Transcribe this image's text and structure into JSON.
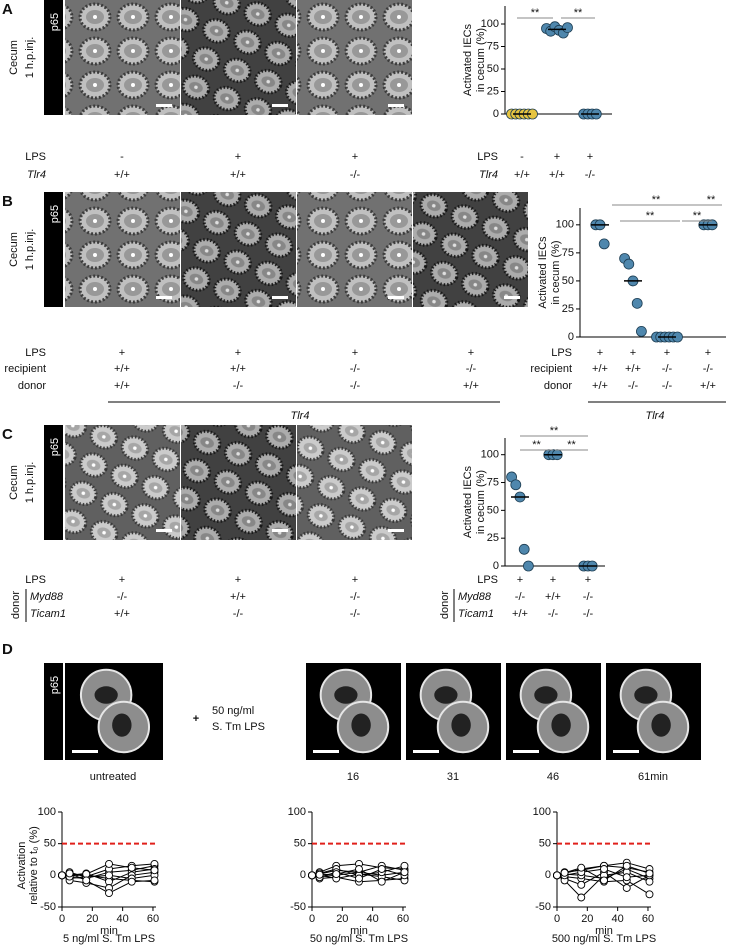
{
  "panels": [
    {
      "label": "A",
      "tissue": [
        "Cecum",
        "1 h.p.inj."
      ],
      "stain": "p65",
      "conditions": [
        {
          "name": "LPS",
          "values": [
            "-",
            "+",
            "+"
          ]
        },
        {
          "name": "Tlr4",
          "values": [
            "+/+",
            "+/+",
            "-/-"
          ]
        }
      ]
    },
    {
      "label": "B",
      "tissue": [
        "Cecum",
        "1 h.p.inj."
      ],
      "stain": "p65",
      "conditions": [
        {
          "name": "LPS",
          "values": [
            "+",
            "+",
            "+",
            "+"
          ]
        },
        {
          "name": "recipient",
          "values": [
            "+/+",
            "+/+",
            "-/-",
            "-/-"
          ]
        },
        {
          "name": "donor",
          "values": [
            "+/+",
            "-/-",
            "-/-",
            "+/+"
          ]
        }
      ],
      "gene": "Tlr4"
    },
    {
      "label": "C",
      "tissue": [
        "Cecum",
        "1 h.p.inj."
      ],
      "stain": "p65",
      "conditions": [
        {
          "name": "LPS",
          "values": [
            "+",
            "+",
            "+"
          ]
        },
        {
          "name": "Myd88",
          "values": [
            "-/-",
            "+/+",
            "-/-"
          ]
        },
        {
          "name": "Ticam1",
          "values": [
            "+/+",
            "-/-",
            "-/-"
          ]
        }
      ],
      "group": "donor"
    },
    {
      "label": "D",
      "stain": "p65",
      "untreated": "untreated",
      "plus": "+",
      "treatment": [
        "50 ng/ml",
        "S. Tm LPS"
      ],
      "timepoints": [
        "16",
        "31",
        "46",
        "61min"
      ]
    }
  ],
  "chart_data": [
    {
      "type": "strip",
      "ylabel": [
        "Activated IECs",
        "in cecum (%)"
      ],
      "ylim": [
        0,
        120
      ],
      "yticks": [
        0,
        25,
        50,
        75,
        100
      ],
      "groups": [
        {
          "color": "#e6c440",
          "values": [
            0,
            0,
            0,
            0,
            0,
            0
          ],
          "median": 0
        },
        {
          "color": "#4f87ad",
          "values": [
            95,
            92,
            97,
            93,
            90,
            96
          ],
          "median": 94
        },
        {
          "color": "#4f87ad",
          "values": [
            0,
            0,
            0,
            0
          ],
          "median": 0
        }
      ],
      "significance": [
        "**",
        "**"
      ]
    },
    {
      "type": "strip",
      "ylabel": [
        "Activated IECs",
        "in cecum (%)"
      ],
      "ylim": [
        0,
        115
      ],
      "yticks": [
        0,
        25,
        50,
        75,
        100
      ],
      "groups": [
        {
          "color": "#4f87ad",
          "values": [
            100,
            100,
            83
          ],
          "median": 100
        },
        {
          "color": "#4f87ad",
          "values": [
            70,
            65,
            50,
            30,
            5
          ],
          "median": 50
        },
        {
          "color": "#4f87ad",
          "values": [
            0,
            0,
            0,
            0,
            0,
            0
          ],
          "median": 0
        },
        {
          "color": "#4f87ad",
          "values": [
            100,
            100,
            100
          ],
          "median": 100
        }
      ],
      "significance": [
        "**",
        "**",
        "**",
        "**"
      ]
    },
    {
      "type": "strip",
      "ylabel": [
        "Activated IECs",
        "in cecum (%)"
      ],
      "ylim": [
        0,
        115
      ],
      "yticks": [
        0,
        25,
        50,
        75,
        100
      ],
      "groups": [
        {
          "color": "#4f87ad",
          "values": [
            80,
            73,
            62,
            15,
            0
          ],
          "median": 62
        },
        {
          "color": "#4f87ad",
          "values": [
            100,
            100,
            100
          ],
          "median": 100
        },
        {
          "color": "#4f87ad",
          "values": [
            0,
            0,
            0
          ],
          "median": 0
        }
      ],
      "significance": [
        "**",
        "**",
        "**"
      ]
    },
    {
      "type": "line",
      "title": "5 ng/ml S. Tm LPS",
      "xlabel": "min",
      "ylabel": [
        "Activation",
        "relative to t₀ (%)"
      ],
      "xlim": [
        0,
        62
      ],
      "xticks": [
        0,
        20,
        40,
        60
      ],
      "ylim": [
        -50,
        100
      ],
      "yticks": [
        -50,
        0,
        50,
        100
      ],
      "threshold": 50,
      "threshold_color": "#e0201b",
      "x": [
        0,
        5,
        16,
        31,
        46,
        61
      ],
      "series": [
        {
          "color": "#000000",
          "values": [
            0,
            -3,
            -5,
            5,
            8,
            15
          ]
        },
        {
          "color": "#000000",
          "values": [
            0,
            2,
            0,
            -5,
            -8,
            -10
          ]
        },
        {
          "color": "#000000",
          "values": [
            0,
            -5,
            -2,
            10,
            15,
            18
          ]
        },
        {
          "color": "#000000",
          "values": [
            0,
            0,
            3,
            -10,
            5,
            10
          ]
        },
        {
          "color": "#000000",
          "values": [
            0,
            -8,
            -12,
            -20,
            0,
            5
          ]
        },
        {
          "color": "#000000",
          "values": [
            0,
            5,
            -3,
            0,
            -5,
            0
          ]
        },
        {
          "color": "#000000",
          "values": [
            0,
            -2,
            2,
            18,
            12,
            8
          ]
        },
        {
          "color": "#000000",
          "values": [
            0,
            3,
            -8,
            -28,
            -10,
            -8
          ]
        }
      ]
    },
    {
      "type": "line",
      "title": "50 ng/ml S. Tm LPS",
      "xlabel": "min",
      "xlim": [
        0,
        62
      ],
      "xticks": [
        0,
        20,
        40,
        60
      ],
      "ylim": [
        -50,
        100
      ],
      "yticks": [
        -50,
        0,
        50,
        100
      ],
      "threshold": 50,
      "threshold_color": "#e0201b",
      "x": [
        0,
        5,
        16,
        31,
        46,
        61
      ],
      "series": [
        {
          "color": "#000000",
          "values": [
            0,
            2,
            8,
            5,
            0,
            5
          ]
        },
        {
          "color": "#000000",
          "values": [
            0,
            -5,
            -3,
            -10,
            -8,
            -5
          ]
        },
        {
          "color": "#000000",
          "values": [
            0,
            5,
            15,
            18,
            12,
            10
          ]
        },
        {
          "color": "#000000",
          "values": [
            0,
            -2,
            0,
            5,
            15,
            8
          ]
        },
        {
          "color": "#000000",
          "values": [
            0,
            0,
            -5,
            2,
            -2,
            -8
          ]
        },
        {
          "color": "#000000",
          "values": [
            0,
            3,
            10,
            0,
            5,
            15
          ]
        },
        {
          "color": "#000000",
          "values": [
            0,
            -3,
            5,
            -5,
            10,
            0
          ]
        },
        {
          "color": "#000000",
          "values": [
            0,
            1,
            2,
            10,
            -10,
            5
          ]
        }
      ]
    },
    {
      "type": "line",
      "title": "500 ng/ml S. Tm LPS",
      "xlabel": "min",
      "xlim": [
        0,
        62
      ],
      "xticks": [
        0,
        20,
        40,
        60
      ],
      "ylim": [
        -50,
        100
      ],
      "yticks": [
        -50,
        0,
        50,
        100
      ],
      "threshold": 50,
      "threshold_color": "#e0201b",
      "x": [
        0,
        5,
        16,
        31,
        46,
        61
      ],
      "series": [
        {
          "color": "#000000",
          "values": [
            0,
            5,
            8,
            15,
            12,
            5
          ]
        },
        {
          "color": "#000000",
          "values": [
            0,
            -2,
            -5,
            -10,
            -8,
            -30
          ]
        },
        {
          "color": "#000000",
          "values": [
            0,
            3,
            10,
            15,
            20,
            10
          ]
        },
        {
          "color": "#000000",
          "values": [
            0,
            -5,
            -15,
            5,
            -20,
            0
          ]
        },
        {
          "color": "#000000",
          "values": [
            0,
            2,
            0,
            -5,
            10,
            -5
          ]
        },
        {
          "color": "#000000",
          "values": [
            0,
            -8,
            -35,
            0,
            5,
            -10
          ]
        },
        {
          "color": "#000000",
          "values": [
            0,
            0,
            5,
            10,
            -3,
            0
          ]
        },
        {
          "color": "#000000",
          "values": [
            0,
            4,
            12,
            -8,
            15,
            3
          ]
        }
      ]
    }
  ]
}
